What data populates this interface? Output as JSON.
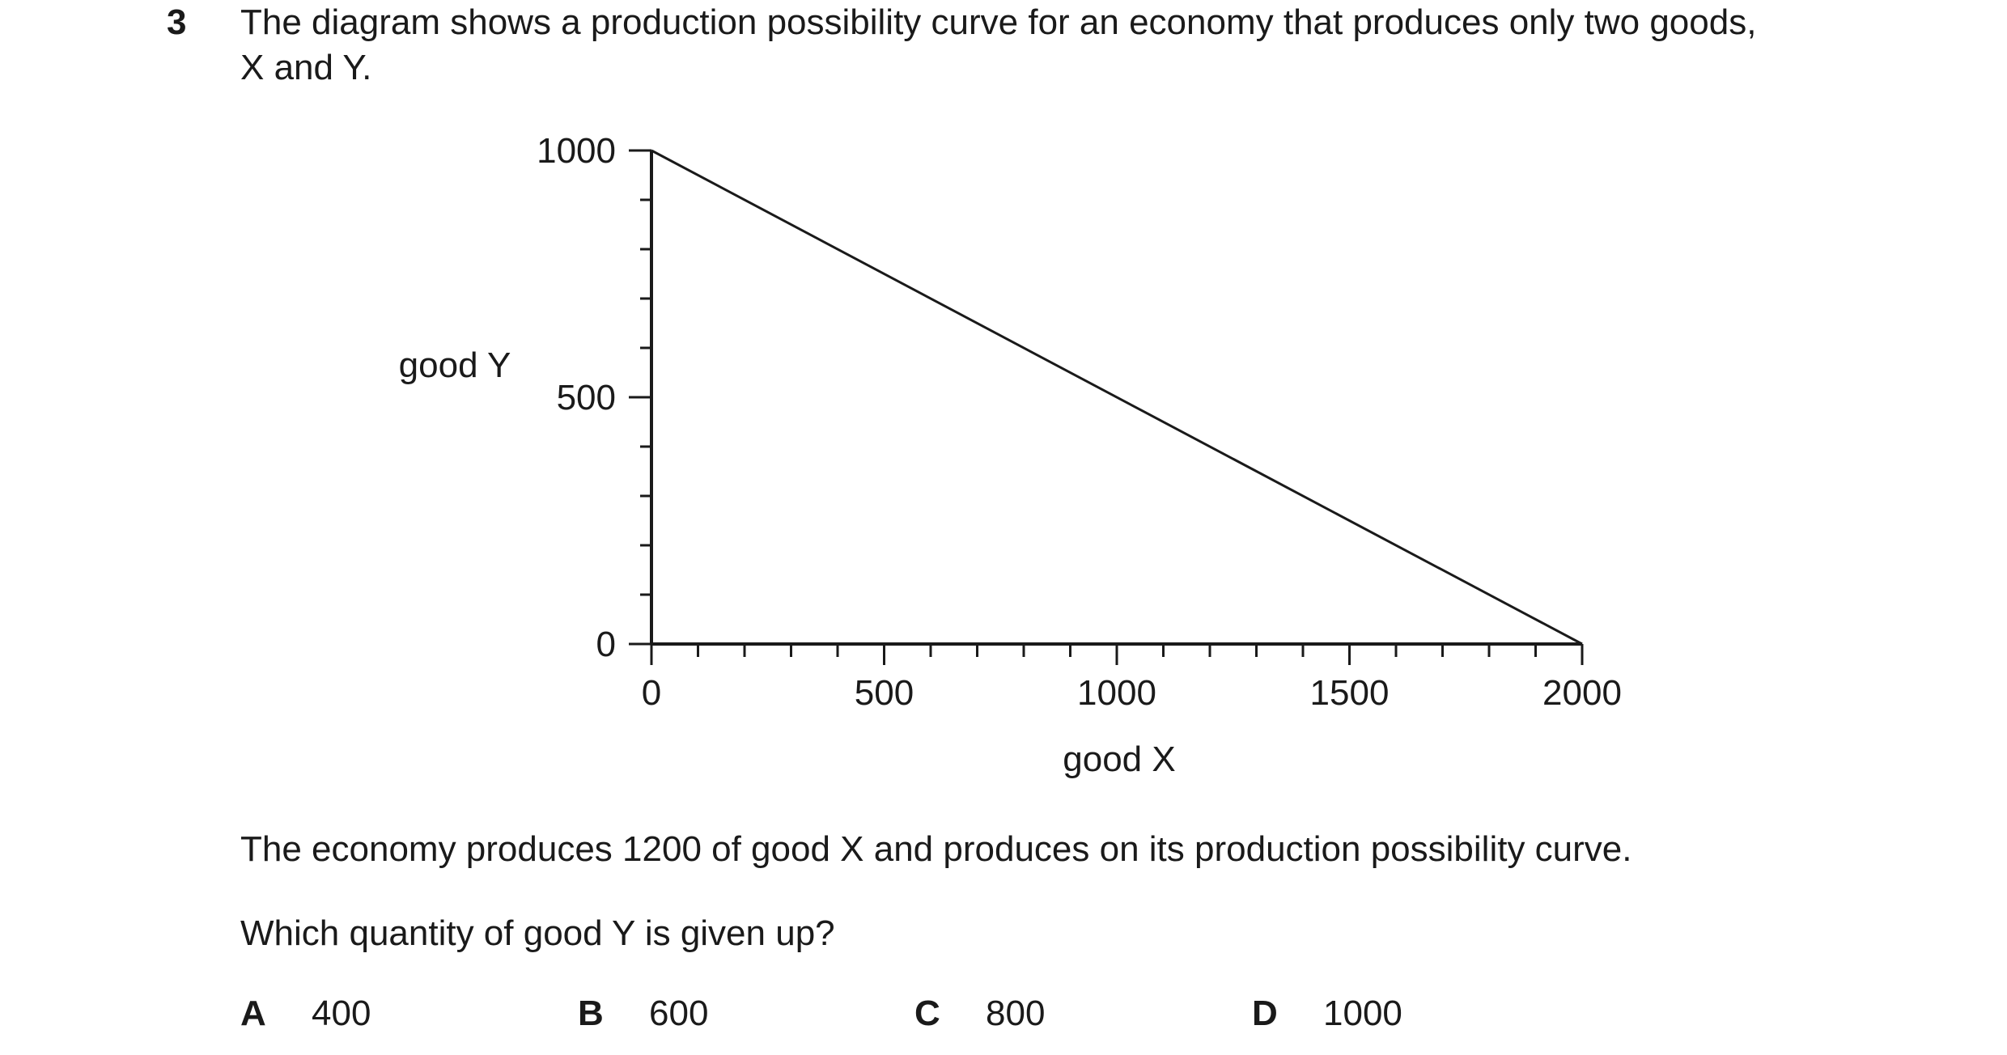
{
  "question": {
    "number": "3",
    "stem_line1": "The diagram shows a production possibility curve for an economy that produces only two goods,",
    "stem_line2": "X and Y.",
    "info": "The economy produces 1200 of good X and produces on its production possibility curve.",
    "prompt": "Which quantity of good Y is given up?"
  },
  "options": [
    {
      "letter": "A",
      "value": "400"
    },
    {
      "letter": "B",
      "value": "600"
    },
    {
      "letter": "C",
      "value": "800"
    },
    {
      "letter": "D",
      "value": "1000"
    }
  ],
  "chart_data": {
    "type": "line",
    "title": "",
    "xlabel": "good X",
    "ylabel": "good Y",
    "xlim": [
      0,
      2000
    ],
    "ylim": [
      0,
      1000
    ],
    "x_tick_labels": [
      "0",
      "500",
      "1000",
      "1500",
      "2000"
    ],
    "y_tick_labels": [
      "0",
      "500",
      "1000"
    ],
    "x_minor_step": 100,
    "y_minor_step": 100,
    "grid": false,
    "series": [
      {
        "x": [
          0,
          2000
        ],
        "y": [
          1000,
          0
        ]
      }
    ],
    "line_color": "#1a1a1a"
  }
}
